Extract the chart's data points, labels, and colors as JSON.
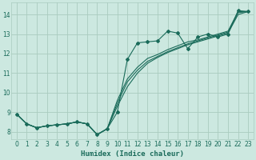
{
  "xlabel": "Humidex (Indice chaleur)",
  "bg_color": "#cce8e0",
  "grid_color": "#aaccbf",
  "line_color": "#1a6b5a",
  "xlim": [
    -0.5,
    23.5
  ],
  "ylim": [
    7.6,
    14.6
  ],
  "xticks": [
    0,
    1,
    2,
    3,
    4,
    5,
    6,
    7,
    8,
    9,
    10,
    11,
    12,
    13,
    14,
    15,
    16,
    17,
    18,
    19,
    20,
    21,
    22,
    23
  ],
  "yticks": [
    8,
    9,
    10,
    11,
    12,
    13,
    14
  ],
  "line_wiggly_x": [
    0,
    1,
    2,
    3,
    4,
    5,
    6,
    7,
    8,
    9,
    10,
    11,
    12,
    13,
    14,
    15,
    16,
    17,
    18,
    19,
    20,
    21,
    22,
    23
  ],
  "line_wiggly_y": [
    8.9,
    8.4,
    8.2,
    8.3,
    8.35,
    8.4,
    8.5,
    8.4,
    7.85,
    8.15,
    9.0,
    11.7,
    12.55,
    12.6,
    12.65,
    13.15,
    13.05,
    12.25,
    12.85,
    13.0,
    12.85,
    13.0,
    14.2,
    14.15
  ],
  "line_diag1_x": [
    0,
    1,
    2,
    3,
    4,
    5,
    6,
    7,
    8,
    9,
    10,
    11,
    12,
    13,
    14,
    15,
    16,
    17,
    18,
    19,
    20,
    21,
    22,
    23
  ],
  "line_diag1_y": [
    8.9,
    8.4,
    8.2,
    8.3,
    8.35,
    8.4,
    8.5,
    8.4,
    7.85,
    8.15,
    9.3,
    10.3,
    11.0,
    11.5,
    11.8,
    12.05,
    12.25,
    12.45,
    12.6,
    12.75,
    12.9,
    13.05,
    14.0,
    14.15
  ],
  "line_diag2_x": [
    0,
    1,
    2,
    3,
    4,
    5,
    6,
    7,
    8,
    9,
    10,
    11,
    12,
    13,
    14,
    15,
    16,
    17,
    18,
    19,
    20,
    21,
    22,
    23
  ],
  "line_diag2_y": [
    8.9,
    8.4,
    8.2,
    8.3,
    8.35,
    8.4,
    8.5,
    8.4,
    7.85,
    8.15,
    9.45,
    10.55,
    11.15,
    11.6,
    11.85,
    12.1,
    12.3,
    12.5,
    12.65,
    12.8,
    12.95,
    13.1,
    14.1,
    14.15
  ],
  "line_diag3_x": [
    0,
    1,
    2,
    3,
    4,
    5,
    6,
    7,
    8,
    9,
    10,
    11,
    12,
    13,
    14,
    15,
    16,
    17,
    18,
    19,
    20,
    21,
    22,
    23
  ],
  "line_diag3_y": [
    8.9,
    8.4,
    8.2,
    8.3,
    8.35,
    8.4,
    8.5,
    8.4,
    7.85,
    8.15,
    9.6,
    10.7,
    11.3,
    11.75,
    11.95,
    12.2,
    12.4,
    12.6,
    12.7,
    12.85,
    13.0,
    13.15,
    14.15,
    14.15
  ]
}
